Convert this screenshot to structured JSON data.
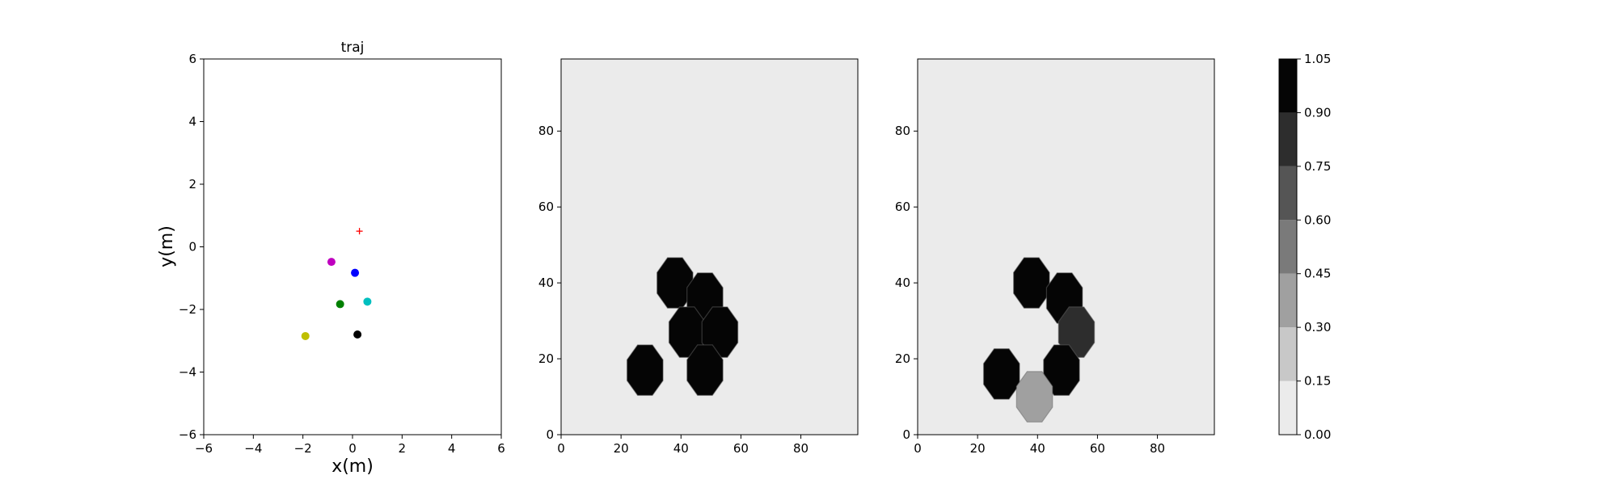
{
  "chart_data": [
    {
      "type": "scatter",
      "title": "traj",
      "xlabel": "x(m)",
      "ylabel": "y(m)",
      "xlim": [
        -6,
        6
      ],
      "ylim": [
        -6,
        6
      ],
      "xticks": [
        -6,
        -4,
        -2,
        0,
        2,
        4,
        6
      ],
      "yticks": [
        -6,
        -4,
        -2,
        0,
        2,
        4,
        6
      ],
      "tick_labels_x": [
        "−6",
        "−4",
        "−2",
        "0",
        "2",
        "4",
        "6"
      ],
      "tick_labels_y": [
        "−6",
        "−4",
        "−2",
        "0",
        "2",
        "4",
        "6"
      ],
      "grid": false,
      "series": [
        {
          "marker": "plus",
          "color": "#ff0000",
          "x": [
            0.28
          ],
          "y": [
            0.5
          ]
        },
        {
          "marker": "circle",
          "color": "#bf00bf",
          "x": [
            -0.85
          ],
          "y": [
            -0.48
          ]
        },
        {
          "marker": "circle",
          "color": "#0000ff",
          "x": [
            0.1
          ],
          "y": [
            -0.83
          ]
        },
        {
          "marker": "circle",
          "color": "#008000",
          "x": [
            -0.5
          ],
          "y": [
            -1.83
          ]
        },
        {
          "marker": "circle",
          "color": "#00bfbf",
          "x": [
            0.6
          ],
          "y": [
            -1.75
          ]
        },
        {
          "marker": "circle",
          "color": "#000000",
          "x": [
            0.2
          ],
          "y": [
            -2.8
          ]
        },
        {
          "marker": "circle",
          "color": "#bfbf00",
          "x": [
            -1.9
          ],
          "y": [
            -2.85
          ]
        }
      ]
    },
    {
      "type": "heatmap",
      "xlim": [
        0,
        99
      ],
      "ylim": [
        0,
        99
      ],
      "xticks": [
        0,
        20,
        40,
        60,
        80
      ],
      "yticks": [
        0,
        20,
        40,
        60,
        80
      ],
      "tick_labels_x": [
        "0",
        "20",
        "40",
        "60",
        "80"
      ],
      "tick_labels_y": [
        "0",
        "20",
        "40",
        "60",
        "80"
      ],
      "background_value": 0.0,
      "blobs": [
        {
          "x": 38,
          "y": 40,
          "value": 1.0
        },
        {
          "x": 48,
          "y": 36,
          "value": 1.0
        },
        {
          "x": 42,
          "y": 27,
          "value": 1.0
        },
        {
          "x": 53,
          "y": 27,
          "value": 1.0
        },
        {
          "x": 28,
          "y": 17,
          "value": 1.0
        },
        {
          "x": 48,
          "y": 17,
          "value": 1.0
        }
      ]
    },
    {
      "type": "heatmap",
      "xlim": [
        0,
        99
      ],
      "ylim": [
        0,
        99
      ],
      "xticks": [
        0,
        20,
        40,
        60,
        80
      ],
      "yticks": [
        0,
        20,
        40,
        60,
        80
      ],
      "tick_labels_x": [
        "0",
        "20",
        "40",
        "60",
        "80"
      ],
      "tick_labels_y": [
        "0",
        "20",
        "40",
        "60",
        "80"
      ],
      "background_value": 0.0,
      "blobs": [
        {
          "x": 38,
          "y": 40,
          "value": 1.0
        },
        {
          "x": 49,
          "y": 36,
          "value": 1.0
        },
        {
          "x": 53,
          "y": 27,
          "value": 0.8
        },
        {
          "x": 28,
          "y": 16,
          "value": 1.0
        },
        {
          "x": 48,
          "y": 17,
          "value": 1.0
        },
        {
          "x": 39,
          "y": 10,
          "value": 0.35
        }
      ]
    }
  ],
  "colorbar": {
    "levels": [
      0.0,
      0.15,
      0.3,
      0.45,
      0.6,
      0.75,
      0.9,
      1.05
    ],
    "labels": [
      "0.00",
      "0.15",
      "0.30",
      "0.45",
      "0.60",
      "0.75",
      "0.90",
      "1.05"
    ],
    "colors": [
      "#ebebeb",
      "#c8c8c8",
      "#a0a0a0",
      "#7a7a7a",
      "#555555",
      "#2d2d2d",
      "#050505"
    ]
  }
}
